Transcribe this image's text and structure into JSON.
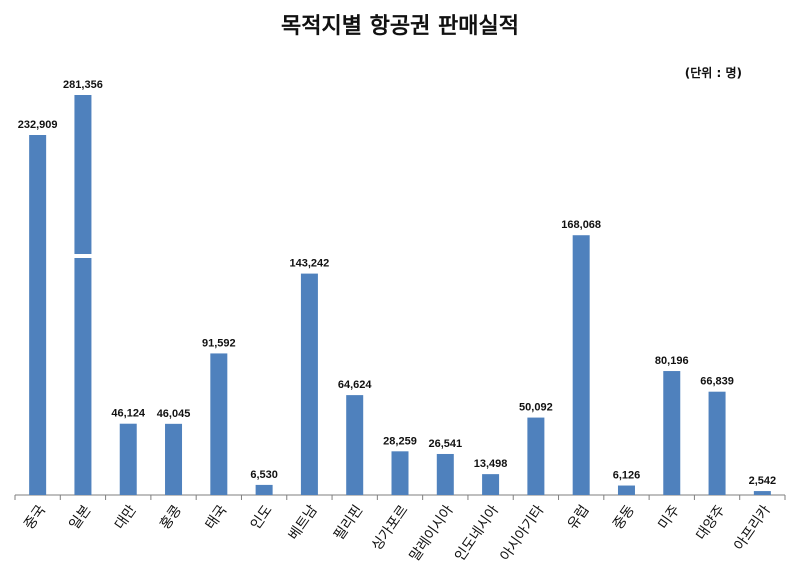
{
  "title": "목적지별 항공권 판매실적",
  "unit_note": "(단위 : 명)",
  "colors": {
    "bar": "#4f81bd",
    "axis": "#7f7f7f"
  },
  "chart_data": {
    "type": "bar",
    "title": "목적지별 항공권 판매실적",
    "categories": [
      "중국",
      "일본",
      "대만",
      "홍콩",
      "태국",
      "인도",
      "베트남",
      "필리핀",
      "싱가포르",
      "말레이시아",
      "인도네시아",
      "아시아기타",
      "유럽",
      "중동",
      "미주",
      "대양주",
      "아프리카"
    ],
    "values": [
      232909,
      281356,
      46124,
      46045,
      91592,
      6530,
      143242,
      64624,
      28259,
      26541,
      13498,
      50092,
      168068,
      6126,
      80196,
      66839,
      2542
    ],
    "value_labels": [
      "232,909",
      "281,356",
      "46,124",
      "46,045",
      "91,592",
      "6,530",
      "143,242",
      "64,624",
      "28,259",
      "26,541",
      "13,498",
      "50,092",
      "168,068",
      "6,126",
      "80,196",
      "66,839",
      "2,542"
    ],
    "broken_axis_categories": [
      "일본"
    ],
    "xlabel": "",
    "ylabel": "",
    "grid": false,
    "legend": "none"
  }
}
